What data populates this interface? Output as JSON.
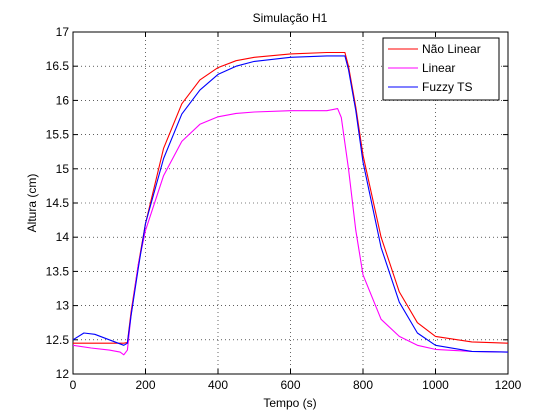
{
  "chart_data": {
    "type": "line",
    "title": "Simulação H1",
    "xlabel": "Tempo (s)",
    "ylabel": "Altura (cm)",
    "xlim": [
      0,
      1200
    ],
    "ylim": [
      12,
      17
    ],
    "xticks": [
      0,
      200,
      400,
      600,
      800,
      1000,
      1200
    ],
    "yticks": [
      12,
      12.5,
      13,
      13.5,
      14,
      14.5,
      15,
      15.5,
      16,
      16.5,
      17
    ],
    "xtick_labels": [
      "0",
      "200",
      "400",
      "600",
      "800",
      "1000",
      "1200"
    ],
    "ytick_labels": [
      "12",
      "12.5",
      "13",
      "13.5",
      "14",
      "14.5",
      "15",
      "15.5",
      "16",
      "16.5",
      "17"
    ],
    "grid": true,
    "legend_position": "top-right",
    "series": [
      {
        "name": "Não Linear",
        "color": "#ff0000",
        "x": [
          0,
          100,
          140,
          150,
          160,
          180,
          200,
          250,
          300,
          350,
          400,
          450,
          500,
          600,
          700,
          740,
          750,
          760,
          780,
          800,
          850,
          900,
          950,
          1000,
          1100,
          1200
        ],
        "y": [
          12.45,
          12.45,
          12.45,
          12.46,
          12.9,
          13.6,
          14.2,
          15.3,
          15.95,
          16.3,
          16.48,
          16.58,
          16.63,
          16.68,
          16.7,
          16.7,
          16.7,
          16.5,
          15.9,
          15.2,
          14.0,
          13.2,
          12.75,
          12.55,
          12.47,
          12.45
        ]
      },
      {
        "name": "Linear",
        "color": "#ff00ff",
        "x": [
          0,
          50,
          100,
          130,
          140,
          150,
          160,
          180,
          200,
          250,
          300,
          350,
          400,
          450,
          500,
          600,
          700,
          720,
          730,
          740,
          760,
          780,
          800,
          850,
          900,
          950,
          1000,
          1100,
          1200
        ],
        "y": [
          12.42,
          12.38,
          12.35,
          12.32,
          12.28,
          12.35,
          12.85,
          13.6,
          14.1,
          14.9,
          15.4,
          15.65,
          15.76,
          15.81,
          15.83,
          15.85,
          15.85,
          15.87,
          15.88,
          15.75,
          15.0,
          14.1,
          13.45,
          12.8,
          12.55,
          12.42,
          12.36,
          12.33,
          12.32
        ]
      },
      {
        "name": "Fuzzy TS",
        "color": "#0000ff",
        "x": [
          0,
          30,
          60,
          100,
          140,
          150,
          160,
          180,
          200,
          250,
          300,
          350,
          400,
          450,
          500,
          600,
          700,
          740,
          750,
          760,
          780,
          800,
          850,
          900,
          950,
          1000,
          1100,
          1200
        ],
        "y": [
          12.5,
          12.6,
          12.58,
          12.5,
          12.42,
          12.45,
          12.85,
          13.55,
          14.2,
          15.15,
          15.8,
          16.15,
          16.38,
          16.5,
          16.57,
          16.63,
          16.65,
          16.65,
          16.65,
          16.45,
          15.85,
          15.1,
          13.85,
          13.05,
          12.6,
          12.42,
          12.33,
          12.32
        ]
      }
    ]
  }
}
